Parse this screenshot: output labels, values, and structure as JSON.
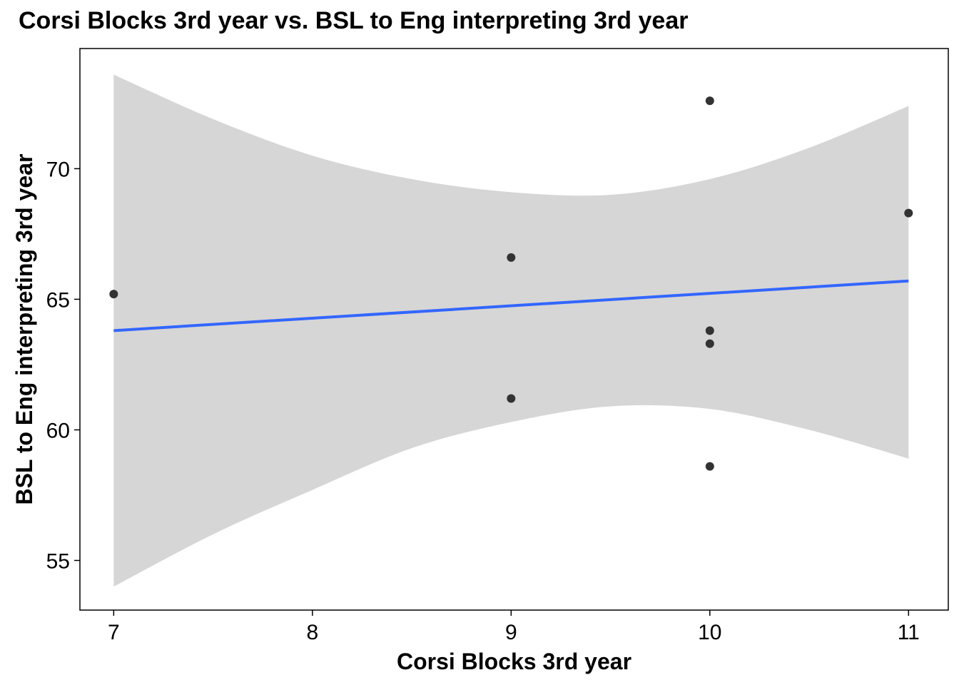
{
  "chart_data": {
    "type": "scatter",
    "title": "Corsi Blocks 3rd year vs. BSL to Eng interpreting 3rd year",
    "xlabel": "Corsi Blocks 3rd year",
    "ylabel": "BSL to Eng interpreting 3rd year",
    "xlim": [
      6.83,
      11.2
    ],
    "ylim": [
      53.1,
      74.6
    ],
    "x_ticks": [
      7,
      8,
      9,
      10,
      11
    ],
    "y_ticks": [
      55,
      60,
      65,
      70
    ],
    "grid": false,
    "points": [
      {
        "x": 7,
        "y": 65.2
      },
      {
        "x": 9,
        "y": 66.6
      },
      {
        "x": 9,
        "y": 61.2
      },
      {
        "x": 10,
        "y": 72.6
      },
      {
        "x": 10,
        "y": 63.8
      },
      {
        "x": 10,
        "y": 63.3
      },
      {
        "x": 10,
        "y": 58.6
      },
      {
        "x": 11,
        "y": 68.3
      }
    ],
    "regression_line": {
      "x": [
        7,
        11
      ],
      "y": [
        63.8,
        65.7
      ],
      "color": "#3366FF"
    },
    "confidence_band": {
      "x": [
        7,
        7.5,
        8,
        8.5,
        9,
        9.5,
        10,
        10.5,
        11
      ],
      "upper": [
        73.6,
        71.9,
        70.5,
        69.6,
        69.1,
        69.0,
        69.6,
        70.8,
        72.4
      ],
      "lower": [
        54.0,
        56.0,
        57.7,
        59.3,
        60.3,
        60.9,
        60.8,
        60.0,
        58.9
      ],
      "color": "#D6D6D6"
    },
    "point_color": "#333333"
  }
}
